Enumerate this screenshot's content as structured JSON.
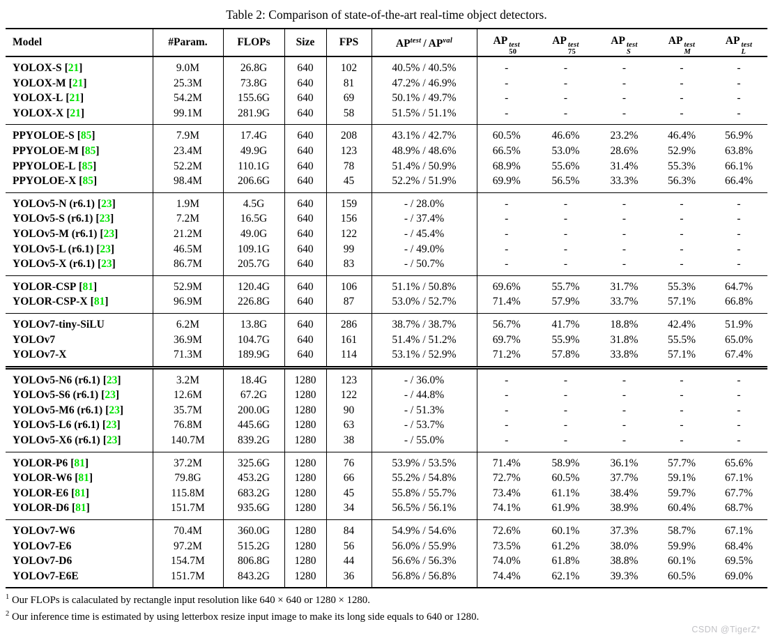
{
  "title": "Table 2: Comparison of state-of-the-art real-time object detectors.",
  "ref_color": "#00e300",
  "header": {
    "model": "Model",
    "params": "#Param.",
    "flops": "FLOPs",
    "size": "Size",
    "fps": "FPS",
    "ap_main": {
      "base1": "AP",
      "sup1": "test",
      "sep": "/",
      "base2": "AP",
      "sup2": "val"
    },
    "ap_cols": [
      {
        "base": "AP",
        "sup": "test",
        "sub": "50"
      },
      {
        "base": "AP",
        "sup": "test",
        "sub": "75"
      },
      {
        "base": "AP",
        "sup": "test",
        "sub": "S"
      },
      {
        "base": "AP",
        "sup": "test",
        "sub": "M"
      },
      {
        "base": "AP",
        "sup": "test",
        "sub": "L"
      }
    ]
  },
  "sections": [
    {
      "id": "yolox",
      "double_rule_before": false,
      "rows": [
        {
          "model": "YOLOX-S",
          "ref": "21",
          "cells": [
            "9.0M",
            "26.8G",
            "640",
            "102",
            "40.5% / 40.5%",
            "-",
            "-",
            "-",
            "-",
            "-"
          ]
        },
        {
          "model": "YOLOX-M",
          "ref": "21",
          "cells": [
            "25.3M",
            "73.8G",
            "640",
            "81",
            "47.2% / 46.9%",
            "-",
            "-",
            "-",
            "-",
            "-"
          ]
        },
        {
          "model": "YOLOX-L",
          "ref": "21",
          "cells": [
            "54.2M",
            "155.6G",
            "640",
            "69",
            "50.1% / 49.7%",
            "-",
            "-",
            "-",
            "-",
            "-"
          ]
        },
        {
          "model": "YOLOX-X",
          "ref": "21",
          "cells": [
            "99.1M",
            "281.9G",
            "640",
            "58",
            "51.5% / 51.1%",
            "-",
            "-",
            "-",
            "-",
            "-"
          ]
        }
      ]
    },
    {
      "id": "ppyoloe",
      "double_rule_before": false,
      "rows": [
        {
          "model": "PPYOLOE-S",
          "ref": "85",
          "cells": [
            "7.9M",
            "17.4G",
            "640",
            "208",
            "43.1% / 42.7%",
            "60.5%",
            "46.6%",
            "23.2%",
            "46.4%",
            "56.9%"
          ]
        },
        {
          "model": "PPYOLOE-M",
          "ref": "85",
          "cells": [
            "23.4M",
            "49.9G",
            "640",
            "123",
            "48.9% / 48.6%",
            "66.5%",
            "53.0%",
            "28.6%",
            "52.9%",
            "63.8%"
          ]
        },
        {
          "model": "PPYOLOE-L",
          "ref": "85",
          "cells": [
            "52.2M",
            "110.1G",
            "640",
            "78",
            "51.4% / 50.9%",
            "68.9%",
            "55.6%",
            "31.4%",
            "55.3%",
            "66.1%"
          ]
        },
        {
          "model": "PPYOLOE-X",
          "ref": "85",
          "cells": [
            "98.4M",
            "206.6G",
            "640",
            "45",
            "52.2% / 51.9%",
            "69.9%",
            "56.5%",
            "33.3%",
            "56.3%",
            "66.4%"
          ]
        }
      ]
    },
    {
      "id": "yolov5-640",
      "double_rule_before": false,
      "rows": [
        {
          "model": "YOLOv5-N (r6.1)",
          "ref": "23",
          "cells": [
            "1.9M",
            "4.5G",
            "640",
            "159",
            "- / 28.0%",
            "-",
            "-",
            "-",
            "-",
            "-"
          ]
        },
        {
          "model": "YOLOv5-S (r6.1)",
          "ref": "23",
          "cells": [
            "7.2M",
            "16.5G",
            "640",
            "156",
            "- / 37.4%",
            "-",
            "-",
            "-",
            "-",
            "-"
          ]
        },
        {
          "model": "YOLOv5-M (r6.1)",
          "ref": "23",
          "cells": [
            "21.2M",
            "49.0G",
            "640",
            "122",
            "- / 45.4%",
            "-",
            "-",
            "-",
            "-",
            "-"
          ]
        },
        {
          "model": "YOLOv5-L (r6.1)",
          "ref": "23",
          "cells": [
            "46.5M",
            "109.1G",
            "640",
            "99",
            "- / 49.0%",
            "-",
            "-",
            "-",
            "-",
            "-"
          ]
        },
        {
          "model": "YOLOv5-X (r6.1)",
          "ref": "23",
          "cells": [
            "86.7M",
            "205.7G",
            "640",
            "83",
            "- / 50.7%",
            "-",
            "-",
            "-",
            "-",
            "-"
          ]
        }
      ]
    },
    {
      "id": "yolor-640",
      "double_rule_before": false,
      "rows": [
        {
          "model": "YOLOR-CSP",
          "ref": "81",
          "cells": [
            "52.9M",
            "120.4G",
            "640",
            "106",
            "51.1% / 50.8%",
            "69.6%",
            "55.7%",
            "31.7%",
            "55.3%",
            "64.7%"
          ]
        },
        {
          "model": "YOLOR-CSP-X",
          "ref": "81",
          "cells": [
            "96.9M",
            "226.8G",
            "640",
            "87",
            "53.0% / 52.7%",
            "71.4%",
            "57.9%",
            "33.7%",
            "57.1%",
            "66.8%"
          ]
        }
      ]
    },
    {
      "id": "yolov7-640",
      "double_rule_before": false,
      "rows": [
        {
          "model": "YOLOv7-tiny-SiLU",
          "ref": "",
          "cells": [
            "6.2M",
            "13.8G",
            "640",
            "286",
            "38.7% / 38.7%",
            "56.7%",
            "41.7%",
            "18.8%",
            "42.4%",
            "51.9%"
          ]
        },
        {
          "model": "YOLOv7",
          "ref": "",
          "cells": [
            "36.9M",
            "104.7G",
            "640",
            "161",
            "51.4% / 51.2%",
            "69.7%",
            "55.9%",
            "31.8%",
            "55.5%",
            "65.0%"
          ]
        },
        {
          "model": "YOLOv7-X",
          "ref": "",
          "cells": [
            "71.3M",
            "189.9G",
            "640",
            "114",
            "53.1% / 52.9%",
            "71.2%",
            "57.8%",
            "33.8%",
            "57.1%",
            "67.4%"
          ]
        }
      ]
    },
    {
      "id": "yolov5-1280",
      "double_rule_before": true,
      "rows": [
        {
          "model": "YOLOv5-N6 (r6.1)",
          "ref": "23",
          "cells": [
            "3.2M",
            "18.4G",
            "1280",
            "123",
            "- / 36.0%",
            "-",
            "-",
            "-",
            "-",
            "-"
          ]
        },
        {
          "model": "YOLOv5-S6 (r6.1)",
          "ref": "23",
          "cells": [
            "12.6M",
            "67.2G",
            "1280",
            "122",
            "- / 44.8%",
            "-",
            "-",
            "-",
            "-",
            "-"
          ]
        },
        {
          "model": "YOLOv5-M6 (r6.1)",
          "ref": "23",
          "cells": [
            "35.7M",
            "200.0G",
            "1280",
            "90",
            "- / 51.3%",
            "-",
            "-",
            "-",
            "-",
            "-"
          ]
        },
        {
          "model": "YOLOv5-L6 (r6.1)",
          "ref": "23",
          "cells": [
            "76.8M",
            "445.6G",
            "1280",
            "63",
            "- / 53.7%",
            "-",
            "-",
            "-",
            "-",
            "-"
          ]
        },
        {
          "model": "YOLOv5-X6 (r6.1)",
          "ref": "23",
          "cells": [
            "140.7M",
            "839.2G",
            "1280",
            "38",
            "- / 55.0%",
            "-",
            "-",
            "-",
            "-",
            "-"
          ]
        }
      ]
    },
    {
      "id": "yolor-1280",
      "double_rule_before": false,
      "rows": [
        {
          "model": "YOLOR-P6",
          "ref": "81",
          "cells": [
            "37.2M",
            "325.6G",
            "1280",
            "76",
            "53.9% / 53.5%",
            "71.4%",
            "58.9%",
            "36.1%",
            "57.7%",
            "65.6%"
          ]
        },
        {
          "model": "YOLOR-W6",
          "ref": "81",
          "cells": [
            "79.8G",
            "453.2G",
            "1280",
            "66",
            "55.2% / 54.8%",
            "72.7%",
            "60.5%",
            "37.7%",
            "59.1%",
            "67.1%"
          ]
        },
        {
          "model": "YOLOR-E6",
          "ref": "81",
          "cells": [
            "115.8M",
            "683.2G",
            "1280",
            "45",
            "55.8% / 55.7%",
            "73.4%",
            "61.1%",
            "38.4%",
            "59.7%",
            "67.7%"
          ]
        },
        {
          "model": "YOLOR-D6",
          "ref": "81",
          "cells": [
            "151.7M",
            "935.6G",
            "1280",
            "34",
            "56.5% / 56.1%",
            "74.1%",
            "61.9%",
            "38.9%",
            "60.4%",
            "68.7%"
          ]
        }
      ]
    },
    {
      "id": "yolov7-1280",
      "double_rule_before": false,
      "rows": [
        {
          "model": "YOLOv7-W6",
          "ref": "",
          "cells": [
            "70.4M",
            "360.0G",
            "1280",
            "84",
            "54.9% / 54.6%",
            "72.6%",
            "60.1%",
            "37.3%",
            "58.7%",
            "67.1%"
          ]
        },
        {
          "model": "YOLOv7-E6",
          "ref": "",
          "cells": [
            "97.2M",
            "515.2G",
            "1280",
            "56",
            "56.0% / 55.9%",
            "73.5%",
            "61.2%",
            "38.0%",
            "59.9%",
            "68.4%"
          ]
        },
        {
          "model": "YOLOv7-D6",
          "ref": "",
          "cells": [
            "154.7M",
            "806.8G",
            "1280",
            "44",
            "56.6% / 56.3%",
            "74.0%",
            "61.8%",
            "38.8%",
            "60.1%",
            "69.5%"
          ]
        },
        {
          "model": "YOLOv7-E6E",
          "ref": "",
          "cells": [
            "151.7M",
            "843.2G",
            "1280",
            "36",
            "56.8% / 56.8%",
            "74.4%",
            "62.1%",
            "39.3%",
            "60.5%",
            "69.0%"
          ]
        }
      ]
    }
  ],
  "footnotes": [
    {
      "marker": "1",
      "text": "Our FLOPs is calaculated by rectangle input resolution like 640 × 640 or 1280 × 1280."
    },
    {
      "marker": "2",
      "text": "Our inference time is estimated by using letterbox resize input image to make its long side equals to 640 or 1280."
    }
  ],
  "watermark": "CSDN @TigerZ*"
}
